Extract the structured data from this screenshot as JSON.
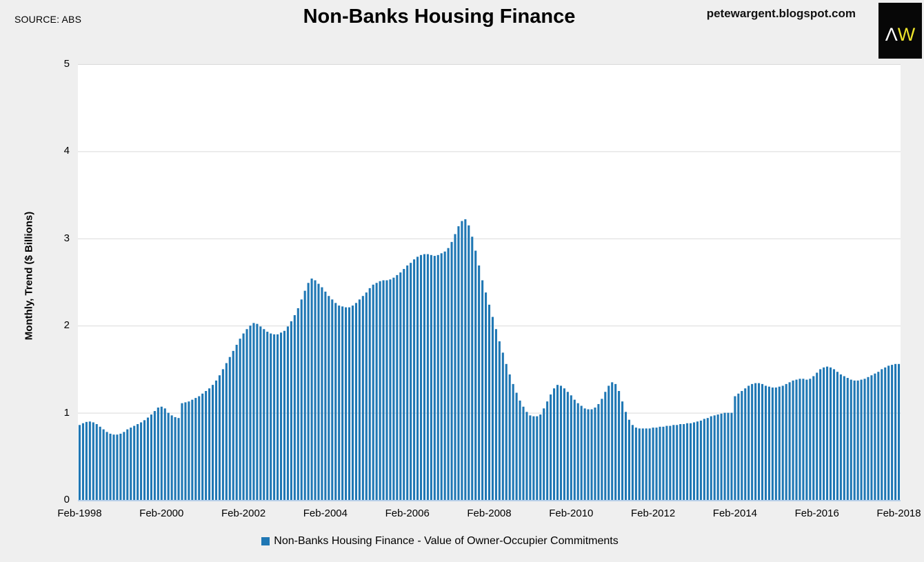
{
  "header": {
    "source_label": "SOURCE: ABS",
    "title": "Non-Banks Housing Finance",
    "site": "petewargent.blogspot.com",
    "logo": {
      "letter_a": "Λ",
      "letter_w": "W",
      "bg": "#070707",
      "a_color": "#ffffff",
      "w_color": "#ece32b"
    }
  },
  "colors": {
    "page_bg": "#efefef",
    "plot_bg": "#ffffff",
    "gridline": "#d9d9d9",
    "axis_line": "#b7cfe9",
    "bar": "#1f77b4",
    "text": "#000000"
  },
  "chart_data": {
    "type": "bar",
    "title": "Non-Banks Housing Finance",
    "ylabel": "Monthly, Trend ($ Billions)",
    "xlabel": "",
    "ylim": [
      0,
      5
    ],
    "yticks": [
      0,
      1,
      2,
      3,
      4,
      5
    ],
    "grid": true,
    "legend_position": "bottom",
    "legend_label": "Non-Banks Housing Finance - Value of Owner-Occupier Commitments",
    "frequency": "monthly",
    "x_start": "Feb-1998",
    "x_end": "Feb-2018",
    "xtick_every_months": 24,
    "xtick_labels": [
      "Feb-1998",
      "Feb-2000",
      "Feb-2002",
      "Feb-2004",
      "Feb-2006",
      "Feb-2008",
      "Feb-2010",
      "Feb-2012",
      "Feb-2014",
      "Feb-2016",
      "Feb-2018"
    ],
    "values": [
      0.86,
      0.88,
      0.895,
      0.9,
      0.89,
      0.87,
      0.84,
      0.81,
      0.78,
      0.76,
      0.75,
      0.75,
      0.76,
      0.78,
      0.81,
      0.83,
      0.85,
      0.87,
      0.89,
      0.915,
      0.945,
      0.98,
      1.02,
      1.06,
      1.07,
      1.05,
      1.0,
      0.97,
      0.95,
      0.94,
      1.11,
      1.12,
      1.13,
      1.15,
      1.17,
      1.19,
      1.22,
      1.25,
      1.28,
      1.32,
      1.37,
      1.43,
      1.5,
      1.57,
      1.64,
      1.71,
      1.78,
      1.85,
      1.91,
      1.96,
      2.0,
      2.03,
      2.02,
      1.99,
      1.96,
      1.93,
      1.91,
      1.9,
      1.9,
      1.92,
      1.94,
      1.99,
      2.05,
      2.12,
      2.2,
      2.3,
      2.4,
      2.49,
      2.54,
      2.52,
      2.48,
      2.44,
      2.39,
      2.34,
      2.3,
      2.26,
      2.23,
      2.22,
      2.21,
      2.21,
      2.23,
      2.26,
      2.3,
      2.34,
      2.38,
      2.43,
      2.47,
      2.49,
      2.51,
      2.52,
      2.52,
      2.53,
      2.55,
      2.58,
      2.61,
      2.65,
      2.69,
      2.72,
      2.76,
      2.79,
      2.81,
      2.82,
      2.82,
      2.81,
      2.8,
      2.81,
      2.83,
      2.85,
      2.89,
      2.96,
      3.05,
      3.14,
      3.2,
      3.22,
      3.15,
      3.02,
      2.86,
      2.69,
      2.52,
      2.38,
      2.24,
      2.1,
      1.96,
      1.82,
      1.69,
      1.56,
      1.44,
      1.33,
      1.23,
      1.14,
      1.07,
      1.01,
      0.97,
      0.96,
      0.96,
      0.98,
      1.05,
      1.13,
      1.21,
      1.28,
      1.32,
      1.31,
      1.28,
      1.24,
      1.2,
      1.15,
      1.11,
      1.08,
      1.05,
      1.04,
      1.04,
      1.06,
      1.1,
      1.16,
      1.24,
      1.31,
      1.35,
      1.33,
      1.25,
      1.13,
      1.01,
      0.92,
      0.86,
      0.83,
      0.82,
      0.82,
      0.82,
      0.82,
      0.83,
      0.83,
      0.84,
      0.84,
      0.85,
      0.85,
      0.86,
      0.86,
      0.87,
      0.87,
      0.88,
      0.88,
      0.89,
      0.9,
      0.91,
      0.93,
      0.94,
      0.96,
      0.97,
      0.98,
      0.99,
      1.0,
      1.0,
      1.0,
      1.19,
      1.22,
      1.25,
      1.28,
      1.31,
      1.33,
      1.34,
      1.34,
      1.33,
      1.31,
      1.3,
      1.29,
      1.29,
      1.3,
      1.31,
      1.33,
      1.35,
      1.37,
      1.38,
      1.39,
      1.39,
      1.38,
      1.39,
      1.42,
      1.46,
      1.5,
      1.52,
      1.53,
      1.52,
      1.5,
      1.47,
      1.44,
      1.42,
      1.4,
      1.38,
      1.37,
      1.37,
      1.38,
      1.39,
      1.41,
      1.43,
      1.45,
      1.47,
      1.5,
      1.52,
      1.54,
      1.55,
      1.56,
      1.56
    ]
  }
}
